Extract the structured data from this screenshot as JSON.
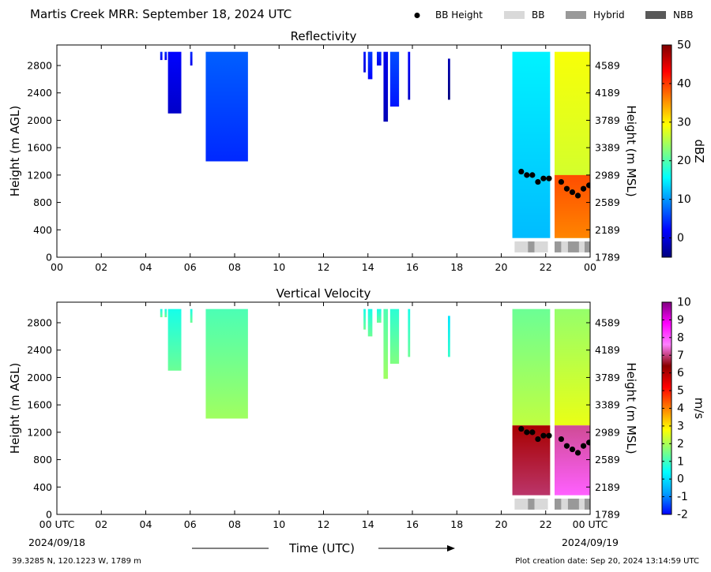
{
  "header": {
    "title": "Martis Creek MRR:  September 18, 2024 UTC",
    "legend": [
      {
        "label": "BB Height",
        "kind": "dot",
        "color": "#000000"
      },
      {
        "label": "BB",
        "kind": "swatch",
        "color": "#d9d9d9"
      },
      {
        "label": "Hybrid",
        "kind": "swatch",
        "color": "#999999"
      },
      {
        "label": "NBB",
        "kind": "swatch",
        "color": "#595959"
      }
    ]
  },
  "chart_data": [
    {
      "type": "heatmap",
      "title": "Reflectivity",
      "ylabel": "Height (m AGL)",
      "y2label": "Height (m MSL)",
      "xlim": [
        0,
        24
      ],
      "ylim": [
        0,
        3100
      ],
      "y_ticks": [
        0,
        400,
        800,
        1200,
        1600,
        2000,
        2400,
        2800
      ],
      "y2_ticks": [
        "1789",
        "2189",
        "2589",
        "2989",
        "3389",
        "3789",
        "4189",
        "4589"
      ],
      "x_tick_labels": [
        "00",
        "02",
        "04",
        "06",
        "08",
        "10",
        "12",
        "14",
        "16",
        "18",
        "20",
        "22",
        "00"
      ],
      "colorbar": {
        "label": "dBZ",
        "min": -5,
        "max": 50,
        "ticks": [
          0,
          10,
          20,
          30,
          40,
          50
        ],
        "stops": [
          "#00007f",
          "#0000ff",
          "#0080ff",
          "#00ffff",
          "#80ff80",
          "#ffff00",
          "#ff8000",
          "#ff0000",
          "#7f0000"
        ]
      },
      "echoes": [
        {
          "start": 4.65,
          "end": 4.75,
          "top": 3000,
          "bottom": 2880,
          "value": 7
        },
        {
          "start": 4.85,
          "end": 4.95,
          "top": 3000,
          "bottom": 2880,
          "value": 7
        },
        {
          "start": 5.0,
          "end": 5.6,
          "top": 3000,
          "bottom": 2100,
          "value": 5
        },
        {
          "start": 6.0,
          "end": 6.1,
          "top": 3000,
          "bottom": 2800,
          "value": 7
        },
        {
          "start": 6.7,
          "end": 8.6,
          "top": 3000,
          "bottom": 1400,
          "value": 10
        },
        {
          "start": 13.8,
          "end": 13.9,
          "top": 3000,
          "bottom": 2700,
          "value": 6
        },
        {
          "start": 14.0,
          "end": 14.2,
          "top": 3000,
          "bottom": 2600,
          "value": 8
        },
        {
          "start": 14.4,
          "end": 14.6,
          "top": 3000,
          "bottom": 2800,
          "value": 7
        },
        {
          "start": 14.7,
          "end": 14.9,
          "top": 3000,
          "bottom": 1980,
          "value": 4
        },
        {
          "start": 15.0,
          "end": 15.4,
          "top": 3000,
          "bottom": 2200,
          "value": 9
        },
        {
          "start": 15.8,
          "end": 15.9,
          "top": 3000,
          "bottom": 2300,
          "value": 5
        },
        {
          "start": 17.6,
          "end": 17.7,
          "top": 2900,
          "bottom": 2300,
          "value": 1
        },
        {
          "start": 20.5,
          "end": 22.2,
          "top": 3000,
          "bottom": 280,
          "value": 18
        },
        {
          "start": 22.4,
          "end": 24.0,
          "top": 3000,
          "bottom": 280,
          "value": 32
        },
        {
          "start": 22.4,
          "end": 24.0,
          "top": 1200,
          "bottom": 280,
          "value": 42
        }
      ],
      "bb_height": {
        "x": [
          20.9,
          21.15,
          21.4,
          21.65,
          21.9,
          22.15,
          22.7,
          22.95,
          23.2,
          23.45,
          23.7,
          23.95
        ],
        "y": [
          1250,
          1200,
          1200,
          1100,
          1150,
          1150,
          1100,
          1000,
          950,
          900,
          1000,
          1050
        ]
      },
      "bb_type": [
        {
          "start": 20.6,
          "end": 21.2,
          "type": "BB"
        },
        {
          "start": 21.2,
          "end": 21.5,
          "type": "Hybrid"
        },
        {
          "start": 21.5,
          "end": 22.1,
          "type": "BB"
        },
        {
          "start": 22.4,
          "end": 22.7,
          "type": "Hybrid"
        },
        {
          "start": 22.7,
          "end": 23.0,
          "type": "BB"
        },
        {
          "start": 23.0,
          "end": 23.5,
          "type": "Hybrid"
        },
        {
          "start": 23.5,
          "end": 23.75,
          "type": "BB"
        },
        {
          "start": 23.75,
          "end": 24.0,
          "type": "Hybrid"
        }
      ]
    },
    {
      "type": "heatmap",
      "title": "Vertical Velocity",
      "ylabel": "Height (m AGL)",
      "y2label": "Height (m MSL)",
      "xlim": [
        0,
        24
      ],
      "ylim": [
        0,
        3100
      ],
      "y_ticks": [
        0,
        400,
        800,
        1200,
        1600,
        2000,
        2400,
        2800
      ],
      "y2_ticks": [
        "1789",
        "2189",
        "2589",
        "2989",
        "3389",
        "3789",
        "4189",
        "4589"
      ],
      "x_tick_labels": [
        "00 UTC",
        "02",
        "04",
        "06",
        "08",
        "10",
        "12",
        "14",
        "16",
        "18",
        "20",
        "22",
        "00 UTC"
      ],
      "x_sub_labels": [
        "2024/09/18",
        "2024/09/19"
      ],
      "xlabel": "Time (UTC)",
      "colorbar": {
        "label": "m/s",
        "min": -2,
        "max": 10,
        "ticks": [
          -2,
          -1,
          0,
          1,
          2,
          3,
          4,
          5,
          6,
          7,
          8,
          9,
          10
        ],
        "stops": [
          "#0000ff",
          "#00a0ff",
          "#00ffff",
          "#80ff80",
          "#ffff00",
          "#ff8000",
          "#ff0000",
          "#8b0000",
          "#ff80ff",
          "#ff00ff",
          "#800080"
        ]
      },
      "echoes": [
        {
          "start": 4.65,
          "end": 4.75,
          "top": 3000,
          "bottom": 2880,
          "value": 1
        },
        {
          "start": 4.85,
          "end": 4.95,
          "top": 3000,
          "bottom": 2880,
          "value": 1
        },
        {
          "start": 5.0,
          "end": 5.6,
          "top": 3000,
          "bottom": 2100,
          "value": 1
        },
        {
          "start": 6.0,
          "end": 6.1,
          "top": 3000,
          "bottom": 2800,
          "value": 1
        },
        {
          "start": 6.7,
          "end": 8.6,
          "top": 3000,
          "bottom": 1400,
          "value": 1.5
        },
        {
          "start": 13.8,
          "end": 13.9,
          "top": 3000,
          "bottom": 2700,
          "value": 1
        },
        {
          "start": 14.0,
          "end": 14.2,
          "top": 3000,
          "bottom": 2600,
          "value": 1
        },
        {
          "start": 14.4,
          "end": 14.6,
          "top": 3000,
          "bottom": 2800,
          "value": 1
        },
        {
          "start": 14.7,
          "end": 14.9,
          "top": 3000,
          "bottom": 1980,
          "value": 1.5
        },
        {
          "start": 15.0,
          "end": 15.4,
          "top": 3000,
          "bottom": 2200,
          "value": 1.2
        },
        {
          "start": 15.8,
          "end": 15.9,
          "top": 3000,
          "bottom": 2300,
          "value": 1
        },
        {
          "start": 17.6,
          "end": 17.7,
          "top": 2900,
          "bottom": 2300,
          "value": 0.5
        },
        {
          "start": 20.5,
          "end": 22.2,
          "top": 3000,
          "bottom": 1300,
          "value": 1.8
        },
        {
          "start": 20.5,
          "end": 22.2,
          "top": 1300,
          "bottom": 280,
          "value": 6.5
        },
        {
          "start": 22.4,
          "end": 24.0,
          "top": 3000,
          "bottom": 1300,
          "value": 2.2
        },
        {
          "start": 22.4,
          "end": 24.0,
          "top": 1300,
          "bottom": 280,
          "value": 7.5
        }
      ],
      "bb_height": {
        "x": [
          20.9,
          21.15,
          21.4,
          21.65,
          21.9,
          22.15,
          22.7,
          22.95,
          23.2,
          23.45,
          23.7,
          23.95
        ],
        "y": [
          1250,
          1200,
          1200,
          1100,
          1150,
          1150,
          1100,
          1000,
          950,
          900,
          1000,
          1050
        ]
      },
      "bb_type": [
        {
          "start": 20.6,
          "end": 21.2,
          "type": "BB"
        },
        {
          "start": 21.2,
          "end": 21.5,
          "type": "Hybrid"
        },
        {
          "start": 21.5,
          "end": 22.1,
          "type": "BB"
        },
        {
          "start": 22.4,
          "end": 22.7,
          "type": "Hybrid"
        },
        {
          "start": 22.7,
          "end": 23.0,
          "type": "BB"
        },
        {
          "start": 23.0,
          "end": 23.5,
          "type": "Hybrid"
        },
        {
          "start": 23.5,
          "end": 23.75,
          "type": "BB"
        },
        {
          "start": 23.75,
          "end": 24.0,
          "type": "Hybrid"
        }
      ]
    }
  ],
  "footer": {
    "location": "39.3285 N, 120.1223 W, 1789 m",
    "creation": "Plot creation date: Sep 20, 2024 13:14:59 UTC"
  }
}
